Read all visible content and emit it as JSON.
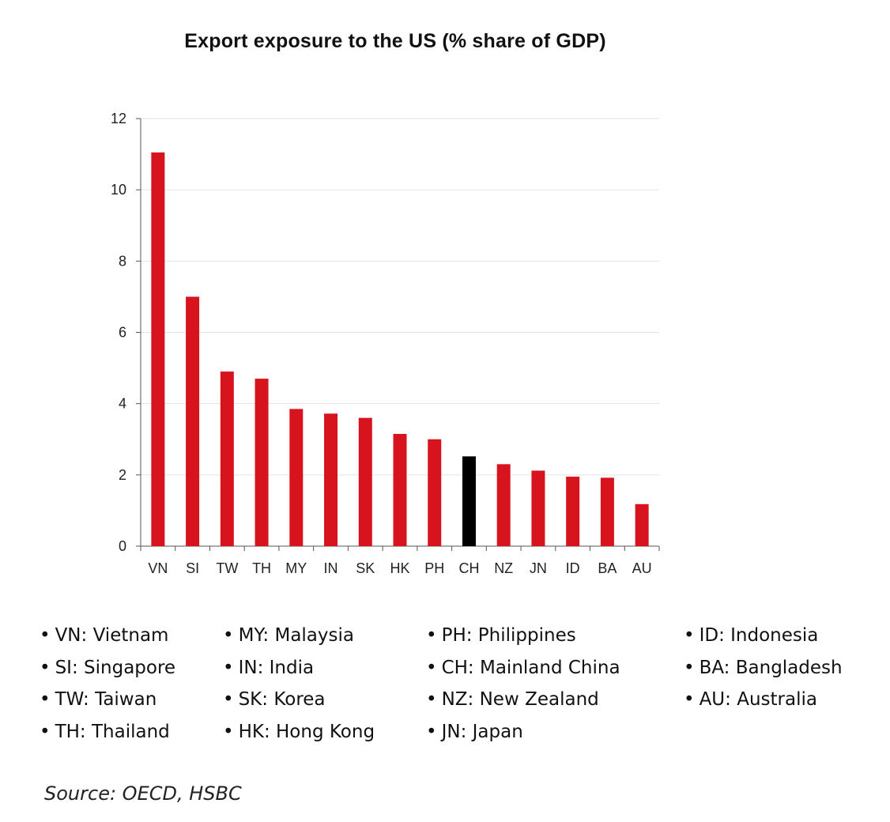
{
  "chart_data": {
    "type": "bar",
    "title": "Export exposure to the US (% share of GDP)",
    "categories": [
      "VN",
      "SI",
      "TW",
      "TH",
      "MY",
      "IN",
      "SK",
      "HK",
      "PH",
      "CH",
      "NZ",
      "JN",
      "ID",
      "BA",
      "AU"
    ],
    "values": [
      11.05,
      7.0,
      4.9,
      4.7,
      3.85,
      3.72,
      3.6,
      3.15,
      3.0,
      2.52,
      2.3,
      2.12,
      1.95,
      1.92,
      1.18
    ],
    "highlight": "CH",
    "colors": {
      "bar": "#d7141d",
      "highlight": "#000000",
      "grid": "#e3e3e3",
      "axis": "#555555"
    },
    "ylim": [
      0,
      12
    ],
    "yticks": [
      0,
      2,
      4,
      6,
      8,
      10,
      12
    ],
    "xlabel": "",
    "ylabel": "",
    "grid": true
  },
  "legend": [
    [
      "VN: Vietnam",
      "SI: Singapore",
      "TW: Taiwan",
      "TH: Thailand"
    ],
    [
      "MY: Malaysia",
      "IN: India",
      "SK: Korea",
      "HK: Hong Kong"
    ],
    [
      "PH: Philippines",
      "CH: Mainland China",
      "NZ: New Zealand",
      "JN: Japan"
    ],
    [
      "ID: Indonesia",
      "BA: Bangladesh",
      "AU: Australia"
    ]
  ],
  "source": "Source: OECD, HSBC"
}
